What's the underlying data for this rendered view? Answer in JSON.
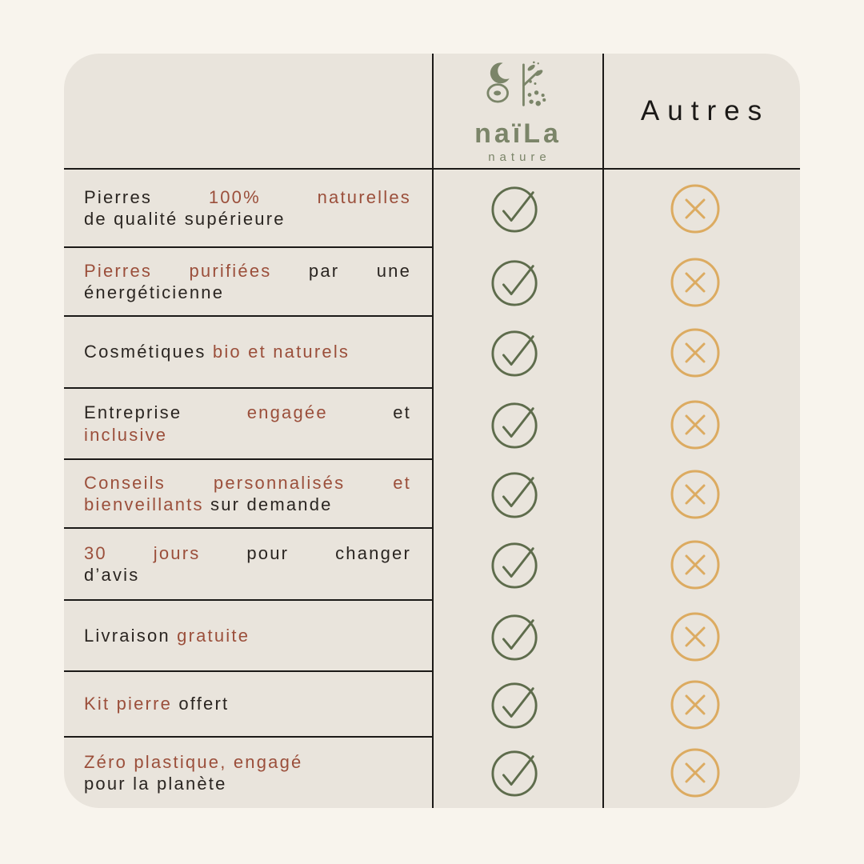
{
  "colors": {
    "page_bg": "#f8f4ed",
    "card_bg": "#e9e4dc",
    "line": "#1b1917",
    "text_dark": "#2a2521",
    "text_accent": "#9b4f3b",
    "logo_green": "#7b8569",
    "check_green": "#5e6c4c",
    "cross_gold": "#dcab61"
  },
  "header": {
    "brand": {
      "name": "naïLa",
      "subtitle": "nature",
      "logo_icon": "naila-nature-logo-icon"
    },
    "competitor_label": "Autres"
  },
  "icons": {
    "check": {
      "name": "check-circle-icon",
      "meaning": "included"
    },
    "cross": {
      "name": "cross-circle-icon",
      "meaning": "not included"
    }
  },
  "rows": [
    {
      "brand": "check",
      "others": "cross",
      "lines": [
        {
          "justify": true,
          "segments": [
            {
              "text": "Pierres ",
              "accent": false
            },
            {
              "text": "100% naturelles",
              "accent": true
            }
          ]
        },
        {
          "justify": false,
          "segments": [
            {
              "text": "de qualité supérieure",
              "accent": false
            }
          ]
        }
      ]
    },
    {
      "brand": "check",
      "others": "cross",
      "lines": [
        {
          "justify": true,
          "segments": [
            {
              "text": "Pierres purifiées",
              "accent": true
            },
            {
              "text": " par une",
              "accent": false
            }
          ]
        },
        {
          "justify": false,
          "segments": [
            {
              "text": "énergéticienne",
              "accent": false
            }
          ]
        }
      ]
    },
    {
      "brand": "check",
      "others": "cross",
      "lines": [
        {
          "justify": false,
          "segments": [
            {
              "text": "Cosmétiques ",
              "accent": false
            },
            {
              "text": "bio et naturels",
              "accent": true
            }
          ]
        }
      ]
    },
    {
      "brand": "check",
      "others": "cross",
      "lines": [
        {
          "justify": true,
          "segments": [
            {
              "text": "Entreprise ",
              "accent": false
            },
            {
              "text": "engagée",
              "accent": true
            },
            {
              "text": " et",
              "accent": false
            }
          ]
        },
        {
          "justify": false,
          "segments": [
            {
              "text": "inclusive",
              "accent": true
            }
          ]
        }
      ]
    },
    {
      "brand": "check",
      "others": "cross",
      "lines": [
        {
          "justify": true,
          "segments": [
            {
              "text": "Conseils personnalisés et",
              "accent": true
            }
          ]
        },
        {
          "justify": false,
          "segments": [
            {
              "text": "bienveillants",
              "accent": true
            },
            {
              "text": " sur demande",
              "accent": false
            }
          ]
        }
      ]
    },
    {
      "brand": "check",
      "others": "cross",
      "lines": [
        {
          "justify": true,
          "segments": [
            {
              "text": "30 jours",
              "accent": true
            },
            {
              "text": " pour changer",
              "accent": false
            }
          ]
        },
        {
          "justify": false,
          "segments": [
            {
              "text": "d’avis",
              "accent": false
            }
          ]
        }
      ]
    },
    {
      "brand": "check",
      "others": "cross",
      "lines": [
        {
          "justify": false,
          "segments": [
            {
              "text": "Livraison ",
              "accent": false
            },
            {
              "text": "gratuite",
              "accent": true
            }
          ]
        }
      ]
    },
    {
      "brand": "check",
      "others": "cross",
      "lines": [
        {
          "justify": false,
          "segments": [
            {
              "text": "Kit pierre",
              "accent": true
            },
            {
              "text": " offert",
              "accent": false
            }
          ]
        }
      ]
    },
    {
      "brand": "check",
      "others": "cross",
      "lines": [
        {
          "justify": false,
          "segments": [
            {
              "text": "Zéro plastique, engagé",
              "accent": true
            }
          ]
        },
        {
          "justify": false,
          "segments": [
            {
              "text": "pour la planète",
              "accent": false
            }
          ]
        }
      ]
    }
  ]
}
